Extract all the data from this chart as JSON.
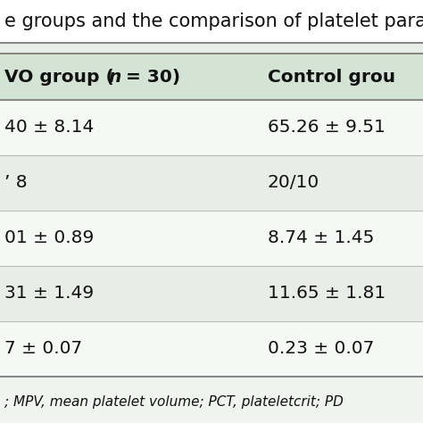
{
  "title": "e groups and the comparison of platelet para",
  "header_col1_part1": "VO group (",
  "header_col1_italic": "n",
  "header_col1_part2": " = 30)",
  "header_col2": "Control grou",
  "col1_values": [
    "40 ± 8.14",
    "’ 8",
    "01 ± 0.89",
    "31 ± 1.49",
    "7 ± 0.07"
  ],
  "col2_values": [
    "65.26 ± 9.51",
    "20/10",
    "8.74 ± 1.45",
    "11.65 ± 1.81",
    "0.23 ± 0.07"
  ],
  "footer": "; MPV, mean platelet volume; PCT, plateletcrit; PD",
  "row_colors": [
    "#f5f9f5",
    "#e8ede8",
    "#f5f9f5",
    "#e8ede8",
    "#f5f9f5"
  ],
  "header_bg": "#d4e4d4",
  "title_bg": "#ffffff",
  "footer_bg": "#f0f4f0",
  "border_color": "#888888",
  "text_color": "#111111",
  "font_size": 14.5,
  "header_font_size": 14.5,
  "title_font_size": 15,
  "footer_font_size": 11
}
